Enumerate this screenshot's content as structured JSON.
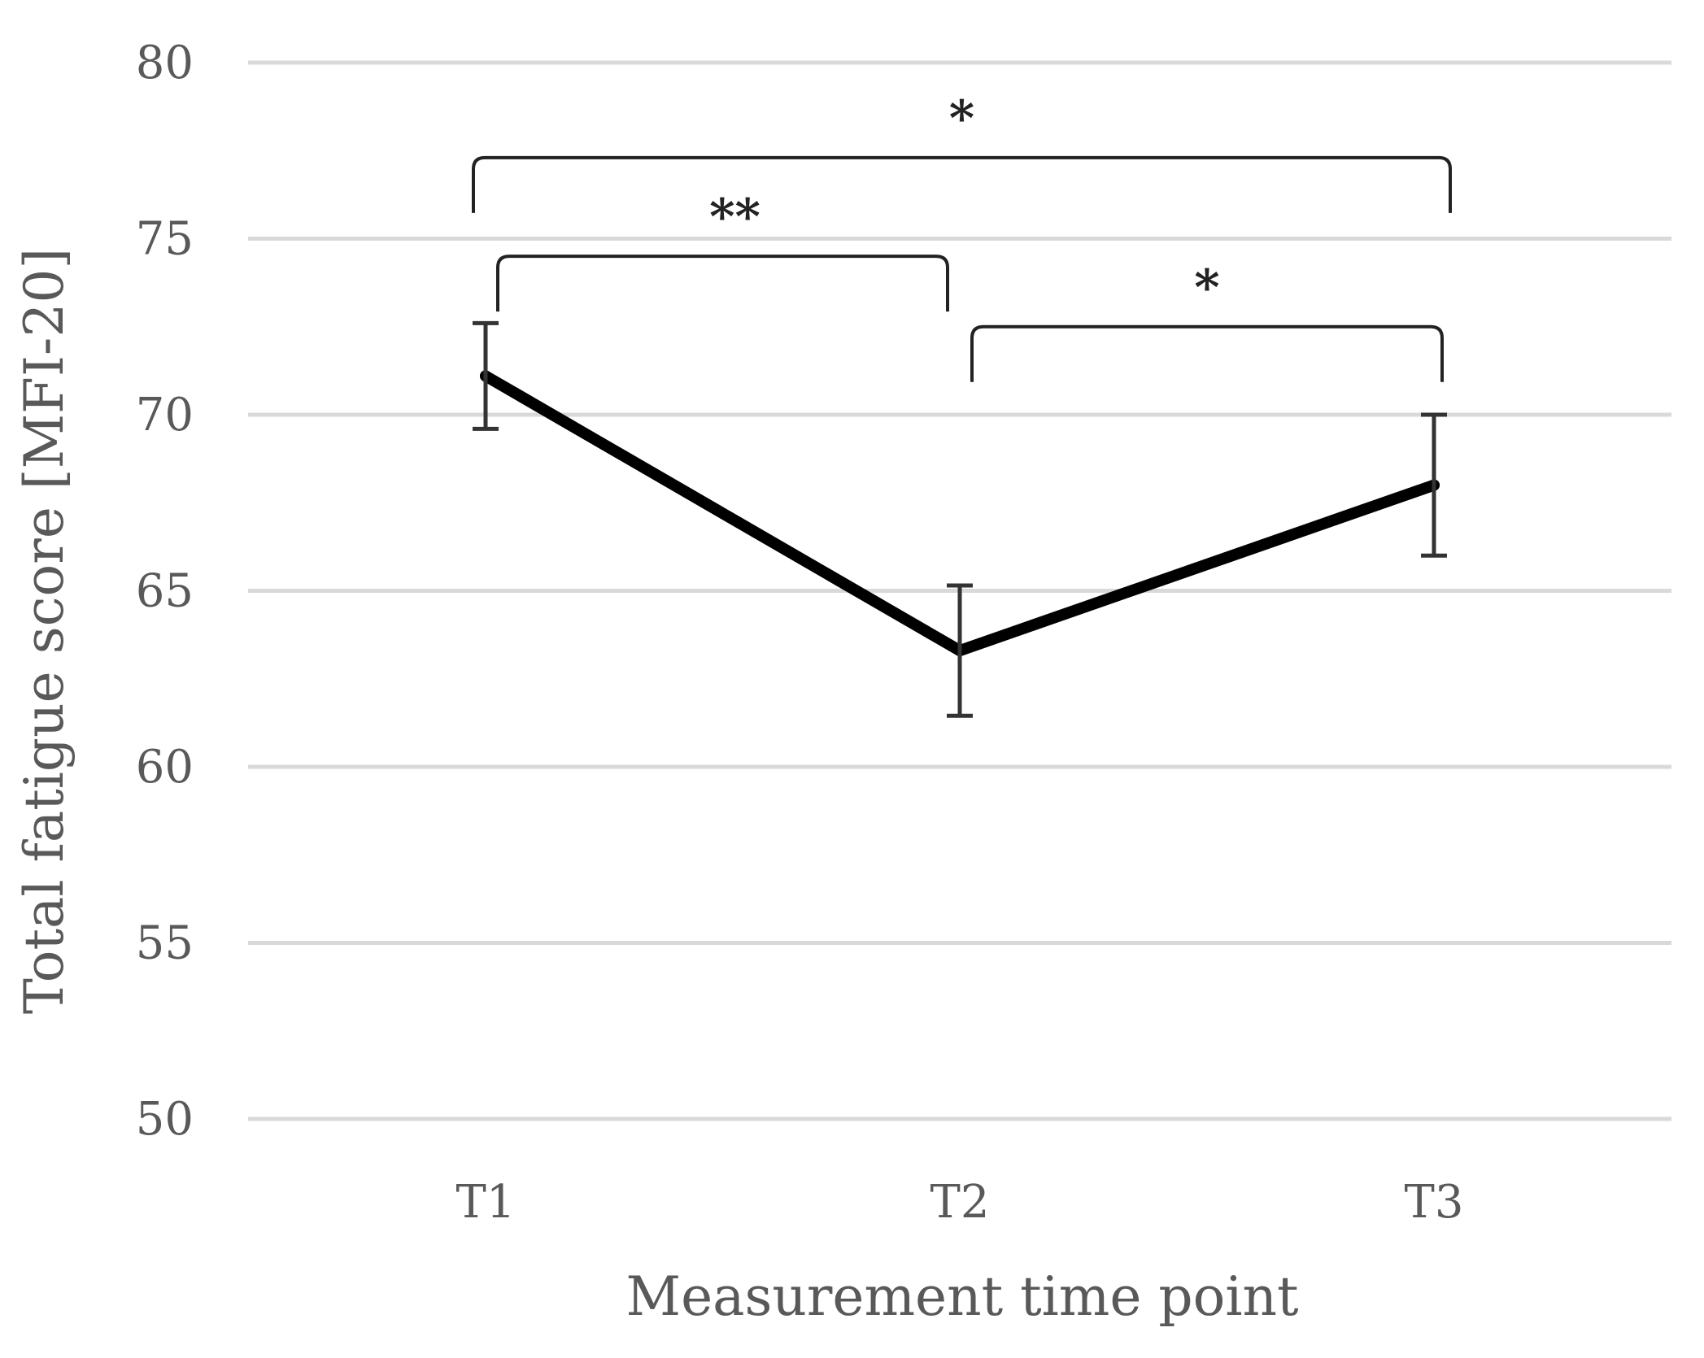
{
  "chart_data": {
    "type": "line",
    "categories": [
      "T1",
      "T2",
      "T3"
    ],
    "series": [
      {
        "values": [
          71.1,
          63.3,
          68.0
        ],
        "error": [
          1.5,
          1.85,
          2.0
        ]
      }
    ],
    "xlabel": "Measurement time point",
    "ylabel": "Total fatigue score  [MFI-20]",
    "ylim": [
      50,
      80
    ],
    "yticks": [
      50,
      55,
      60,
      65,
      70,
      75,
      80
    ],
    "grid": true,
    "annotations": [
      {
        "from": "T1",
        "to": "T2",
        "label": "**",
        "y": 74.5
      },
      {
        "from": "T1",
        "to": "T3",
        "label": "*",
        "y": 77.3
      },
      {
        "from": "T2",
        "to": "T3",
        "label": "*",
        "y": 72.5
      }
    ]
  }
}
